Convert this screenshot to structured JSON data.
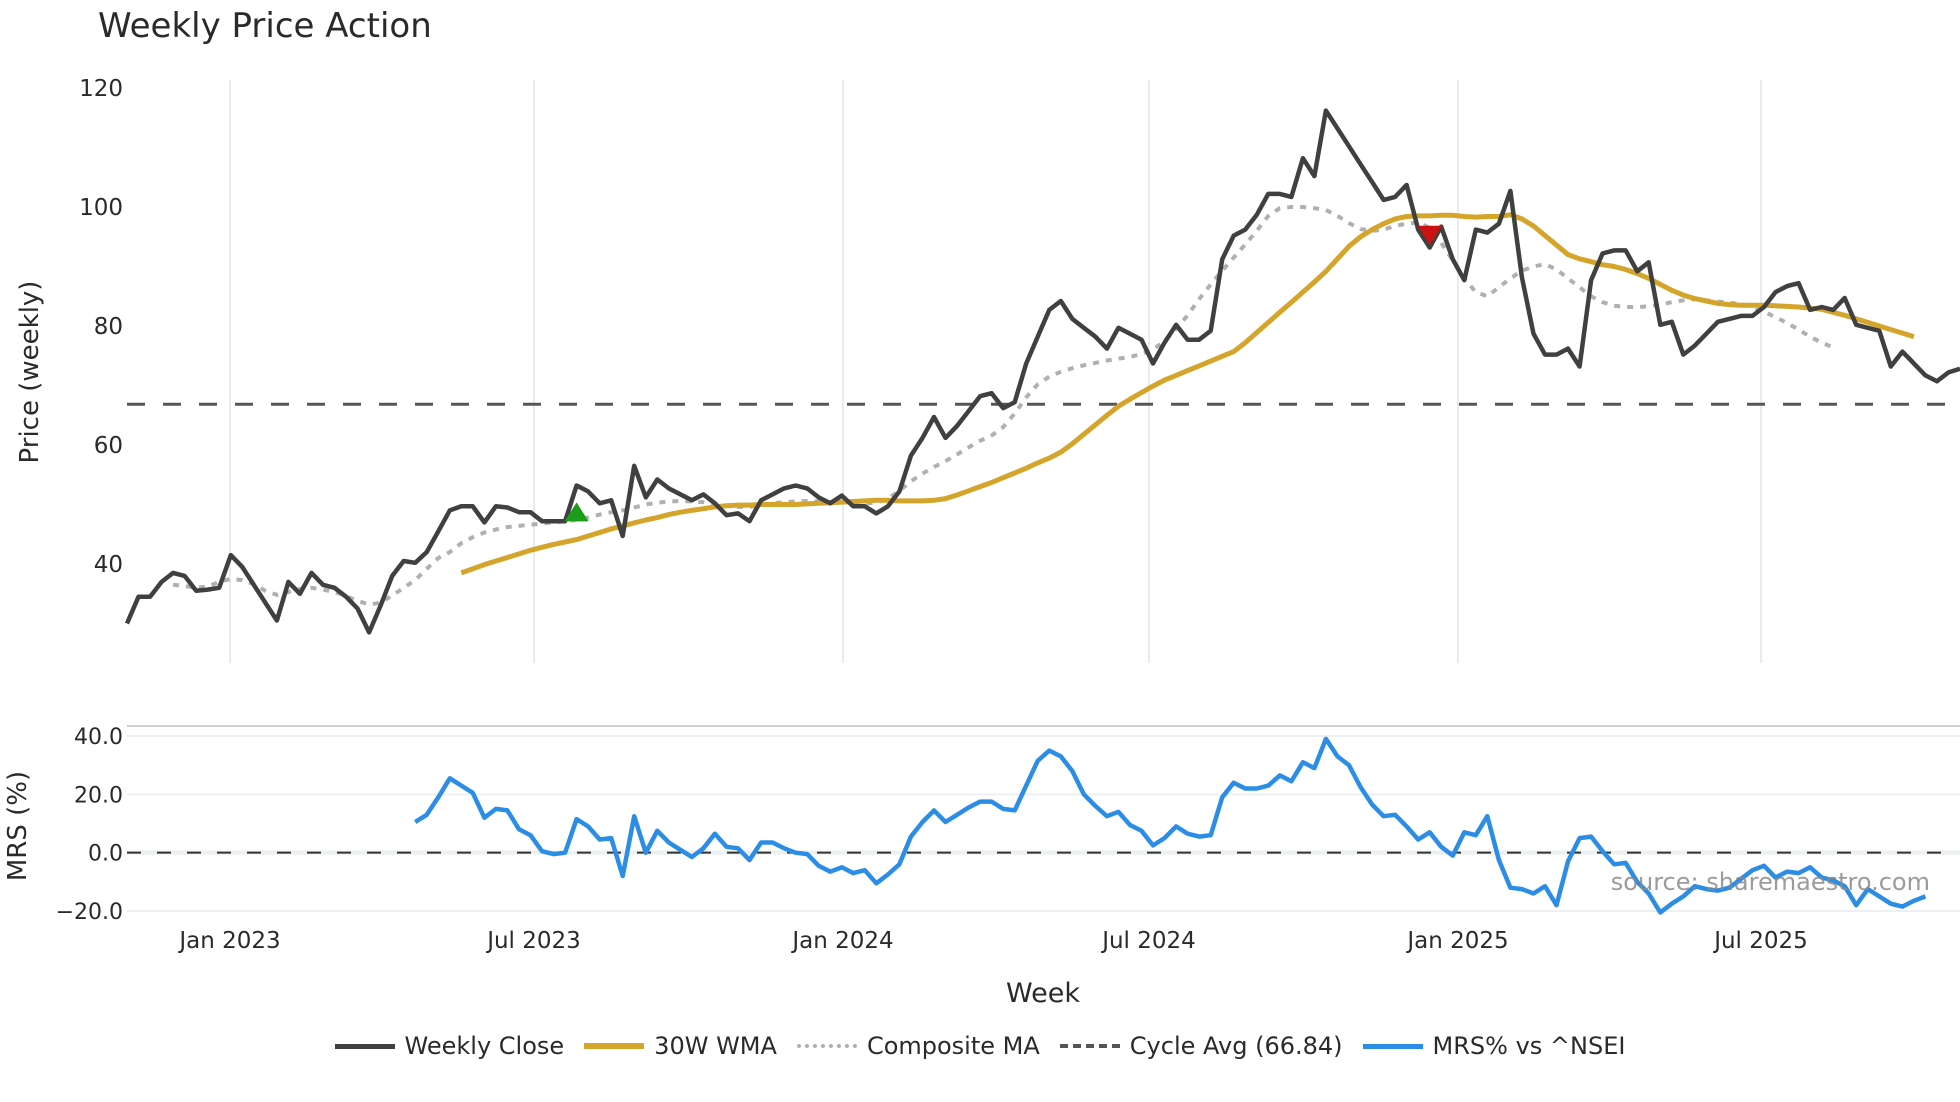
{
  "title": "Weekly Price Action",
  "legend": [
    {
      "label": "Weekly Close",
      "color": "#404040",
      "style": "solid"
    },
    {
      "label": "30W WMA",
      "color": "#d4a52a",
      "style": "solid"
    },
    {
      "label": "Composite MA",
      "color": "#b0b0b0",
      "style": "dotted"
    },
    {
      "label": "Cycle Avg (66.84)",
      "color": "#555555",
      "style": "dashed"
    },
    {
      "label": "MRS% vs ^NSEI",
      "color": "#2b8de6",
      "style": "solid"
    }
  ],
  "watermark": "source: sharemaestro.com",
  "chart_data": [
    {
      "type": "line",
      "title": "Weekly Price Action",
      "xlabel": "Week",
      "ylabel": "Price (weekly)",
      "ylim": [
        25,
        122
      ],
      "yticks": [
        40,
        60,
        80,
        100,
        120
      ],
      "xticks": [
        "Jan 2023",
        "Jul 2023",
        "Jan 2024",
        "Jul 2024",
        "Jan 2025",
        "Jul 2025"
      ],
      "grid": true,
      "hline": {
        "name": "Cycle Avg (66.84)",
        "value": 66.84
      },
      "markers": [
        {
          "type": "buy",
          "shape": "triangle-up",
          "color": "#1a9e1a",
          "week_index": 39,
          "value": 48.5
        },
        {
          "type": "sell",
          "shape": "triangle-down",
          "color": "#cc1111",
          "week_index": 113,
          "value": 95.5
        }
      ],
      "series": [
        {
          "name": "Weekly Close",
          "color": "#404040",
          "start_index": 0,
          "values": [
            30,
            34.5,
            34.5,
            37,
            38.5,
            38,
            35.5,
            35.7,
            36,
            41.5,
            39.5,
            36.5,
            33.5,
            30.5,
            37,
            35,
            38.5,
            36.5,
            36,
            34.5,
            32.5,
            28.5,
            33,
            38,
            40.5,
            40.2,
            42,
            45.5,
            49,
            49.7,
            49.7,
            47,
            49.7,
            49.5,
            48.7,
            48.7,
            47.2,
            47.2,
            47.2,
            53.2,
            52.2,
            50.2,
            50.7,
            44.7,
            56.5,
            51.2,
            54.2,
            52.7,
            51.7,
            50.7,
            51.7,
            50.2,
            48.2,
            48.5,
            47.2,
            50.7,
            51.7,
            52.7,
            53.2,
            52.7,
            51.2,
            50.2,
            51.5,
            49.7,
            49.7,
            48.5,
            49.7,
            52.2,
            58.2,
            61.2,
            64.7,
            61.2,
            63.2,
            65.7,
            68.2,
            68.7,
            66.2,
            67.2,
            73.7,
            78.2,
            82.7,
            84.2,
            81.2,
            79.7,
            78.2,
            76.2,
            79.7,
            78.7,
            77.7,
            73.7,
            77.2,
            80.2,
            77.7,
            77.7,
            79.2,
            91.2,
            95.2,
            96.2,
            98.7,
            102.2,
            102.2,
            101.7,
            108.2,
            105.2,
            116.2,
            113.2,
            110.2,
            107.2,
            104.2,
            101.2,
            101.7,
            103.7,
            96.2,
            93.2,
            96.7,
            91.2,
            87.7,
            96.2,
            95.7,
            97.2,
            102.7,
            88.2,
            78.7,
            75.2,
            75.2,
            76.2,
            73.2,
            87.7,
            92.2,
            92.7,
            92.7,
            89.2,
            90.7,
            80.2,
            80.7,
            75.2,
            76.7,
            78.7,
            80.7,
            81.2,
            81.7,
            81.7,
            83.2,
            85.7,
            86.7,
            87.2,
            82.7,
            83.2,
            82.7,
            84.7,
            80.2,
            79.7,
            79.2,
            73.2,
            75.7,
            73.7,
            71.7,
            70.7,
            72.2,
            72.8
          ]
        },
        {
          "name": "30W WMA",
          "color": "#d4a52a",
          "start_index": 29,
          "values": [
            38.5,
            39.2,
            39.9,
            40.5,
            41.1,
            41.7,
            42.3,
            42.8,
            43.3,
            43.7,
            44.1,
            44.7,
            45.3,
            45.9,
            46.4,
            46.9,
            47.4,
            47.8,
            48.3,
            48.7,
            49.0,
            49.3,
            49.6,
            49.8,
            49.9,
            49.9,
            50.0,
            50.0,
            50.0,
            50.0,
            50.1,
            50.2,
            50.3,
            50.4,
            50.5,
            50.6,
            50.7,
            50.7,
            50.6,
            50.6,
            50.6,
            50.7,
            51.0,
            51.6,
            52.3,
            53.0,
            53.7,
            54.5,
            55.3,
            56.1,
            57.0,
            57.8,
            58.8,
            60.2,
            61.8,
            63.4,
            65.0,
            66.5,
            67.7,
            68.8,
            69.9,
            70.9,
            71.7,
            72.5,
            73.3,
            74.1,
            74.9,
            75.7,
            77.2,
            78.9,
            80.6,
            82.3,
            84.0,
            85.7,
            87.4,
            89.2,
            91.3,
            93.4,
            95.0,
            96.2,
            97.2,
            98.0,
            98.4,
            98.5,
            98.5,
            98.6,
            98.6,
            98.4,
            98.3,
            98.4,
            98.4,
            98.7,
            98.0,
            96.8,
            95.2,
            93.6,
            92.0,
            91.3,
            90.8,
            90.3,
            90.0,
            89.5,
            88.8,
            88.0,
            87.0,
            86.0,
            85.2,
            84.6,
            84.2,
            83.8,
            83.6,
            83.5,
            83.5,
            83.5,
            83.4,
            83.3,
            83.2,
            83.0,
            82.8,
            82.3,
            81.8,
            81.2,
            80.6,
            80.0,
            79.4,
            78.8,
            78.2
          ]
        },
        {
          "name": "Composite MA",
          "color": "#b0b0b0",
          "start_index": 4,
          "values": [
            36.5,
            36.3,
            36.0,
            36.2,
            37.0,
            37.5,
            37.3,
            36.6,
            35.5,
            34.8,
            35.3,
            35.8,
            36.0,
            35.7,
            35.3,
            34.6,
            33.8,
            33.2,
            33.5,
            34.7,
            36.0,
            37.3,
            39.2,
            41.0,
            42.0,
            43.5,
            44.5,
            45.3,
            45.8,
            46.2,
            46.4,
            46.6,
            46.8,
            47.0,
            47.2,
            47.4,
            47.8,
            48.3,
            48.7,
            49.0,
            49.5,
            50.0,
            50.3,
            50.5,
            50.6,
            50.5,
            50.4,
            50.1,
            49.8,
            49.6,
            49.6,
            49.9,
            50.2,
            50.4,
            50.5,
            50.6,
            50.5,
            50.4,
            50.5,
            50.3,
            50.2,
            50.3,
            51.0,
            52.3,
            53.9,
            55.2,
            56.3,
            57.3,
            58.4,
            59.6,
            60.7,
            61.6,
            63.0,
            65.3,
            68.0,
            70.2,
            71.5,
            72.3,
            72.9,
            73.4,
            73.8,
            74.2,
            74.5,
            74.8,
            75.3,
            76.0,
            77.5,
            79.5,
            81.8,
            84.5,
            87.0,
            89.3,
            91.5,
            93.7,
            96.0,
            98.5,
            99.8,
            100.0,
            100.0,
            99.8,
            99.5,
            98.5,
            97.3,
            96.3,
            96.0,
            96.2,
            96.8,
            97.2,
            97.4,
            96.5,
            94.0,
            91.0,
            88.0,
            85.7,
            85.0,
            86.5,
            88.0,
            89.3,
            90.0,
            90.4,
            89.5,
            88.0,
            86.5,
            85.0,
            84.0,
            83.4,
            83.2,
            83.2,
            83.3,
            83.6,
            84.0,
            84.3,
            84.5,
            84.3,
            84.1,
            83.9,
            83.7,
            83.2,
            82.4,
            81.5,
            80.5,
            79.4,
            78.2,
            77.2,
            76.4
          ]
        }
      ]
    },
    {
      "type": "line",
      "xlabel": "Week",
      "ylabel": "MRS (%)",
      "ylim": [
        -22,
        44
      ],
      "yticks": [
        "-20.0",
        "0.0",
        "20.0",
        "40.0"
      ],
      "xticks": [
        "Jan 2023",
        "Jul 2023",
        "Jan 2024",
        "Jul 2024",
        "Jan 2025",
        "Jul 2025"
      ],
      "hline": {
        "value": 0,
        "style": "dashed"
      },
      "series": [
        {
          "name": "MRS% vs ^NSEI",
          "color": "#2b8de6",
          "start_index": 25,
          "values": [
            10.5,
            13,
            19,
            25.5,
            23,
            20.5,
            12,
            15,
            14.5,
            8,
            6,
            0.5,
            -0.5,
            0,
            11.5,
            9,
            4.5,
            5,
            -8,
            12.5,
            0,
            7.5,
            3.5,
            1,
            -1.5,
            1.5,
            6.5,
            2,
            1.5,
            -2.5,
            3.5,
            3.5,
            1.5,
            0,
            -0.5,
            -4.5,
            -6.5,
            -5,
            -7,
            -6,
            -10.5,
            -7.5,
            -4,
            5.5,
            10.5,
            14.5,
            10.5,
            13,
            15.5,
            17.5,
            17.5,
            15,
            14.5,
            23,
            31.5,
            35,
            33,
            28,
            20,
            16,
            12.5,
            14,
            9.5,
            7.5,
            2.5,
            5,
            9,
            6.5,
            5.5,
            6,
            19,
            24,
            22,
            22,
            23,
            26.5,
            24.5,
            31,
            29,
            39,
            33,
            30,
            22.5,
            16.5,
            12.5,
            13,
            9,
            4.5,
            7,
            2,
            -1,
            7,
            6,
            12.5,
            -2.5,
            -12,
            -12.5,
            -14,
            -11.5,
            -18,
            -3,
            5,
            5.5,
            0.5,
            -4,
            -3.5,
            -10,
            -14,
            -20.5,
            -17.5,
            -15,
            -11.5,
            -12.5,
            -13,
            -12,
            -9,
            -6,
            -4.5,
            -8.5,
            -6.5,
            -7,
            -5,
            -8.5,
            -9.5,
            -11.5,
            -18,
            -12.5,
            -15,
            -17.5,
            -18.5,
            -16.5,
            -15
          ]
        }
      ]
    }
  ]
}
